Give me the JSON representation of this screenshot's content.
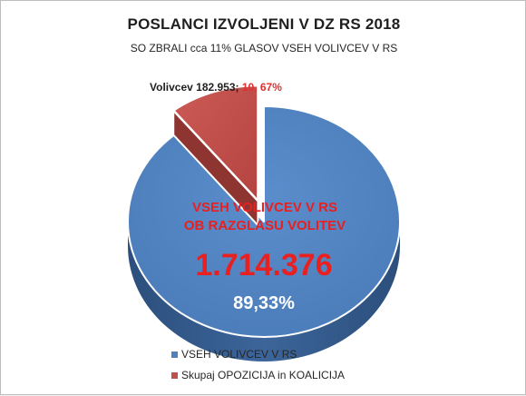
{
  "chart_data": {
    "type": "pie",
    "title": "POSLANCI IZVOLJENI V DZ RS 2018",
    "subtitle": "SO ZBRALI cca 11% GLASOV VSEH VOLIVCEV V RS",
    "slices": [
      {
        "name": "VSEH VOLIVCEV V RS",
        "percent": 89.33,
        "color": "#4f81bd",
        "inner_label_line1": "VSEH VOLIVCEV V RS",
        "inner_label_line2": "OB RAZGLASU VOLITEV",
        "inner_value": "1.714.376",
        "percent_label": "89,33%"
      },
      {
        "name": "Skupaj OPOZICIJA in KOALICIJA",
        "percent": 10.67,
        "color": "#c0504d",
        "exploded": true,
        "callout_text": "Volivcev 182.953; ",
        "callout_percent": "10, 67%"
      }
    ],
    "legend_position": "bottom"
  }
}
